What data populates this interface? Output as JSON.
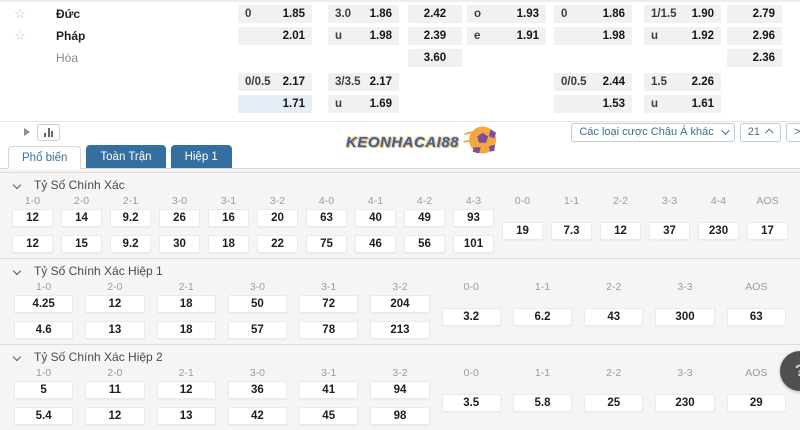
{
  "colors": {
    "tab_blue": "#356f9f",
    "active_tab_text": "#3273a8",
    "odds_cell_bg": "#f1f1f1",
    "highlight_cell_bg": "#e7edf6",
    "watermark_blue": "#2b63b5",
    "watermark_orange": "#f5a93c"
  },
  "teams": {
    "home": "Đức",
    "away": "Pháp",
    "draw": "Hòa"
  },
  "top_table": {
    "row1": {
      "a_l": "0",
      "a_v": "1.85",
      "b_l": "3.0",
      "b_v": "1.86",
      "c": "2.42",
      "d_l": "o",
      "d_v": "1.93",
      "e_l": "0",
      "e_v": "1.86",
      "f_l": "1/1.5",
      "f_v": "1.90",
      "g": "2.79"
    },
    "row2": {
      "a_l": "",
      "a_v": "2.01",
      "b_l": "u",
      "b_v": "1.98",
      "c": "2.39",
      "d_l": "e",
      "d_v": "1.91",
      "e_l": "",
      "e_v": "1.98",
      "f_l": "u",
      "f_v": "1.92",
      "g": "2.96"
    },
    "row3": {
      "c": "3.60",
      "g": "2.36"
    },
    "row4": {
      "a_l": "0/0.5",
      "a_v": "2.17",
      "b_l": "3/3.5",
      "b_v": "2.17",
      "e_l": "0/0.5",
      "e_v": "2.44",
      "f_l": "1.5",
      "f_v": "2.26"
    },
    "row5": {
      "a_l": "",
      "a_v": "1.71",
      "b_l": "u",
      "b_v": "1.69",
      "e_l": "",
      "e_v": "1.53",
      "f_l": "u",
      "f_v": "1.61"
    }
  },
  "toolbar": {
    "asian_dropdown_label": "Các loại cược Châu Á khác",
    "count_label": "21",
    "partial_label": ">"
  },
  "tabs": {
    "popular": "Phổ biến",
    "full_match": "Toàn Trận",
    "half1": "Hiệp 1"
  },
  "watermark": "KEONHACAI88",
  "fab_label": "?",
  "sections": [
    {
      "title": "Tỷ Số Chính Xác",
      "columns": [
        {
          "score": "1-0",
          "odds": [
            "12",
            "12"
          ]
        },
        {
          "score": "2-0",
          "odds": [
            "14",
            "15"
          ]
        },
        {
          "score": "2-1",
          "odds": [
            "9.2",
            "9.2"
          ]
        },
        {
          "score": "3-0",
          "odds": [
            "26",
            "30"
          ]
        },
        {
          "score": "3-1",
          "odds": [
            "16",
            "18"
          ]
        },
        {
          "score": "3-2",
          "odds": [
            "20",
            "22"
          ]
        },
        {
          "score": "4-0",
          "odds": [
            "63",
            "75"
          ]
        },
        {
          "score": "4-1",
          "odds": [
            "40",
            "46"
          ]
        },
        {
          "score": "4-2",
          "odds": [
            "49",
            "56"
          ]
        },
        {
          "score": "4-3",
          "odds": [
            "93",
            "101"
          ]
        },
        {
          "score": "0-0",
          "odds": [
            "19"
          ]
        },
        {
          "score": "1-1",
          "odds": [
            "7.3"
          ]
        },
        {
          "score": "2-2",
          "odds": [
            "12"
          ]
        },
        {
          "score": "3-3",
          "odds": [
            "37"
          ]
        },
        {
          "score": "4-4",
          "odds": [
            "230"
          ]
        },
        {
          "score": "AOS",
          "odds": [
            "17"
          ]
        }
      ]
    },
    {
      "title": "Tỷ Số Chính Xác Hiệp 1",
      "columns": [
        {
          "score": "1-0",
          "odds": [
            "4.25",
            "4.6"
          ]
        },
        {
          "score": "2-0",
          "odds": [
            "12",
            "13"
          ]
        },
        {
          "score": "2-1",
          "odds": [
            "18",
            "18"
          ]
        },
        {
          "score": "3-0",
          "odds": [
            "50",
            "57"
          ]
        },
        {
          "score": "3-1",
          "odds": [
            "72",
            "78"
          ]
        },
        {
          "score": "3-2",
          "odds": [
            "204",
            "213"
          ]
        },
        {
          "score": "0-0",
          "odds": [
            "3.2"
          ]
        },
        {
          "score": "1-1",
          "odds": [
            "6.2"
          ]
        },
        {
          "score": "2-2",
          "odds": [
            "43"
          ]
        },
        {
          "score": "3-3",
          "odds": [
            "300"
          ]
        },
        {
          "score": "AOS",
          "odds": [
            "63"
          ]
        }
      ]
    },
    {
      "title": "Tỷ Số Chính Xác Hiệp 2",
      "columns": [
        {
          "score": "1-0",
          "odds": [
            "5",
            "5.4"
          ]
        },
        {
          "score": "2-0",
          "odds": [
            "11",
            "12"
          ]
        },
        {
          "score": "2-1",
          "odds": [
            "12",
            "13"
          ]
        },
        {
          "score": "3-0",
          "odds": [
            "36",
            "42"
          ]
        },
        {
          "score": "3-1",
          "odds": [
            "41",
            "45"
          ]
        },
        {
          "score": "3-2",
          "odds": [
            "94",
            "98"
          ]
        },
        {
          "score": "0-0",
          "odds": [
            "3.5"
          ]
        },
        {
          "score": "1-1",
          "odds": [
            "5.8"
          ]
        },
        {
          "score": "2-2",
          "odds": [
            "25"
          ]
        },
        {
          "score": "3-3",
          "odds": [
            "230"
          ]
        },
        {
          "score": "AOS",
          "odds": [
            "29"
          ]
        }
      ]
    }
  ]
}
